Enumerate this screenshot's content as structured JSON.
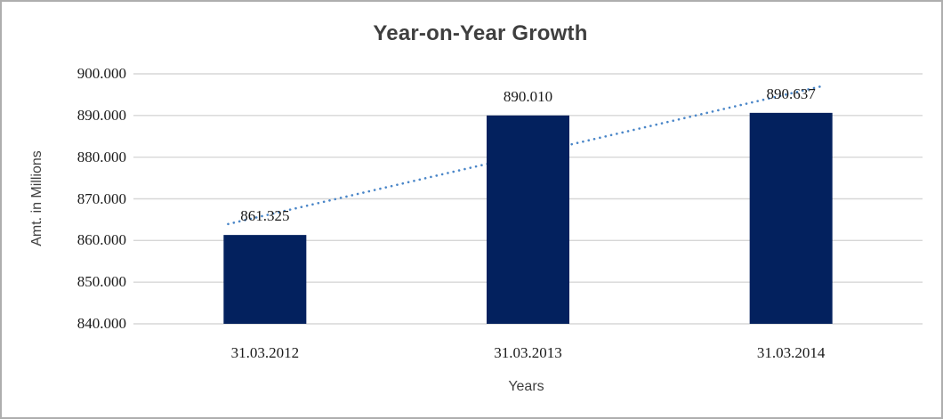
{
  "chart_data": {
    "type": "bar",
    "title": "Year-on-Year Growth",
    "xlabel": "Years",
    "ylabel": "Amt. in Millions",
    "categories": [
      "31.03.2012",
      "31.03.2013",
      "31.03.2014"
    ],
    "values": [
      861325,
      890010,
      890637
    ],
    "data_labels": [
      "861.325",
      "890.010",
      "890.637"
    ],
    "ylim": [
      840000,
      900000
    ],
    "ytick_step": 10000,
    "ytick_labels": [
      "840.000",
      "850.000",
      "860.000",
      "870.000",
      "880.000",
      "890.000",
      "900.000"
    ],
    "grid": true,
    "legend": false,
    "trendline": {
      "type": "linear",
      "style": "dotted"
    },
    "colors": {
      "bar": "#03215e",
      "trendline": "#4a86c8",
      "gridline": "#d7d7d7",
      "axis_line": "#d7d7d7",
      "title": "#3f3f3f",
      "axis_title": "#3f3f3f",
      "tick_text": "#1a1a1a",
      "border": "#aeaeae",
      "background": "#ffffff"
    }
  }
}
